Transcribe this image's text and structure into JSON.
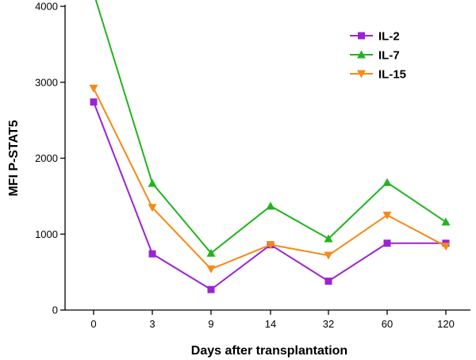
{
  "chart_data": {
    "type": "line",
    "categories": [
      "0",
      "3",
      "9",
      "14",
      "32",
      "60",
      "120"
    ],
    "xlabel": "Days after transplantation",
    "ylabel": "MFI P-STAT5",
    "ylim": [
      0,
      4000
    ],
    "yticks": [
      0,
      1000,
      2000,
      3000,
      4000
    ],
    "legend_position": "top-right",
    "grid": false,
    "series": [
      {
        "name": "IL-2",
        "marker": "square",
        "color": "#9a24d4",
        "values": [
          2740,
          740,
          270,
          860,
          380,
          880,
          880
        ]
      },
      {
        "name": "IL-7",
        "marker": "triangle-up",
        "color": "#22b41e",
        "values": [
          4180,
          1670,
          750,
          1370,
          940,
          1680,
          1160
        ]
      },
      {
        "name": "IL-15",
        "marker": "triangle-down",
        "color": "#f58a16",
        "values": [
          2920,
          1350,
          540,
          860,
          720,
          1250,
          840
        ]
      }
    ]
  }
}
